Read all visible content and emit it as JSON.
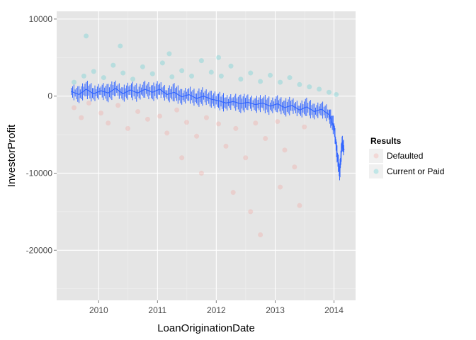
{
  "chart_data": {
    "type": "scatter",
    "xlabel": "LoanOriginationDate",
    "ylabel": "InvestorProfit",
    "xlim": [
      "2009-04-15",
      "2014-05-15"
    ],
    "ylim": [
      -26500,
      11000
    ],
    "x_ticks": [
      "2010",
      "2011",
      "2012",
      "2013",
      "2014"
    ],
    "x_tick_dates": [
      "2010-01-01",
      "2011-01-01",
      "2012-01-01",
      "2013-01-01",
      "2014-01-01"
    ],
    "y_ticks": [
      10000,
      0,
      -10000,
      -20000
    ],
    "y_tick_labels": [
      "10000",
      "0",
      "-10000",
      "-20000"
    ],
    "grid": true,
    "legend_position": "right",
    "legend": {
      "title": "Results",
      "entries": [
        {
          "label": "Defaulted",
          "color": "#F8766D"
        },
        {
          "label": "Current or Paid",
          "color": "#00BFC4"
        }
      ]
    },
    "series": [
      {
        "name": "Defaulted",
        "color": "#F8766D",
        "kind": "points",
        "points": [
          {
            "x": "2009-08-01",
            "y": -1500
          },
          {
            "x": "2009-09-15",
            "y": -2800
          },
          {
            "x": "2009-11-01",
            "y": -900
          },
          {
            "x": "2010-01-15",
            "y": -2200
          },
          {
            "x": "2010-03-01",
            "y": -3500
          },
          {
            "x": "2010-05-01",
            "y": -1200
          },
          {
            "x": "2010-07-01",
            "y": -4200
          },
          {
            "x": "2010-09-01",
            "y": -2000
          },
          {
            "x": "2010-11-01",
            "y": -3000
          },
          {
            "x": "2011-01-15",
            "y": -2600
          },
          {
            "x": "2011-03-01",
            "y": -4800
          },
          {
            "x": "2011-05-01",
            "y": -1800
          },
          {
            "x": "2011-07-01",
            "y": -3400
          },
          {
            "x": "2011-09-01",
            "y": -5200
          },
          {
            "x": "2011-11-01",
            "y": -2800
          },
          {
            "x": "2012-01-15",
            "y": -3600
          },
          {
            "x": "2012-03-01",
            "y": -6500
          },
          {
            "x": "2012-05-01",
            "y": -4200
          },
          {
            "x": "2012-07-01",
            "y": -8000
          },
          {
            "x": "2012-09-01",
            "y": -3500
          },
          {
            "x": "2012-11-01",
            "y": -5500
          },
          {
            "x": "2013-01-15",
            "y": -3300
          },
          {
            "x": "2013-03-01",
            "y": -7000
          },
          {
            "x": "2013-05-01",
            "y": -9200
          },
          {
            "x": "2013-07-01",
            "y": -4000
          },
          {
            "x": "2012-04-15",
            "y": -12500
          },
          {
            "x": "2012-08-01",
            "y": -15000
          },
          {
            "x": "2013-02-01",
            "y": -11800
          },
          {
            "x": "2013-06-01",
            "y": -14200
          },
          {
            "x": "2011-10-01",
            "y": -10000
          },
          {
            "x": "2012-10-01",
            "y": -18000
          },
          {
            "x": "2011-06-01",
            "y": -8000
          }
        ]
      },
      {
        "name": "Current or Paid",
        "color": "#00BFC4",
        "kind": "points",
        "points": [
          {
            "x": "2009-08-01",
            "y": 1800
          },
          {
            "x": "2009-10-01",
            "y": 2600
          },
          {
            "x": "2009-12-01",
            "y": 3200
          },
          {
            "x": "2010-02-01",
            "y": 2400
          },
          {
            "x": "2010-04-01",
            "y": 4000
          },
          {
            "x": "2010-06-01",
            "y": 3000
          },
          {
            "x": "2010-08-01",
            "y": 2200
          },
          {
            "x": "2010-10-01",
            "y": 3800
          },
          {
            "x": "2010-12-01",
            "y": 2900
          },
          {
            "x": "2011-02-01",
            "y": 4300
          },
          {
            "x": "2011-04-01",
            "y": 2500
          },
          {
            "x": "2011-06-01",
            "y": 3300
          },
          {
            "x": "2011-08-01",
            "y": 2600
          },
          {
            "x": "2011-10-01",
            "y": 4600
          },
          {
            "x": "2011-12-01",
            "y": 3100
          },
          {
            "x": "2012-02-01",
            "y": 2600
          },
          {
            "x": "2012-04-01",
            "y": 3900
          },
          {
            "x": "2012-06-01",
            "y": 2200
          },
          {
            "x": "2012-08-01",
            "y": 3000
          },
          {
            "x": "2012-10-01",
            "y": 1900
          },
          {
            "x": "2012-12-01",
            "y": 2700
          },
          {
            "x": "2013-02-01",
            "y": 1800
          },
          {
            "x": "2013-04-01",
            "y": 2400
          },
          {
            "x": "2013-06-01",
            "y": 1500
          },
          {
            "x": "2013-08-01",
            "y": 1200
          },
          {
            "x": "2013-10-01",
            "y": 900
          },
          {
            "x": "2013-12-01",
            "y": 500
          },
          {
            "x": "2014-01-15",
            "y": 200
          },
          {
            "x": "2010-05-15",
            "y": 6500
          },
          {
            "x": "2011-03-15",
            "y": 5500
          },
          {
            "x": "2012-01-15",
            "y": 5000
          },
          {
            "x": "2009-10-15",
            "y": 7800
          }
        ]
      },
      {
        "name": "",
        "color": "#3366FF",
        "kind": "line",
        "points": [
          {
            "x": "2009-07-15",
            "y": 600
          },
          {
            "x": "2009-09-01",
            "y": 200
          },
          {
            "x": "2009-10-15",
            "y": 900
          },
          {
            "x": "2009-12-01",
            "y": 300
          },
          {
            "x": "2010-01-15",
            "y": 700
          },
          {
            "x": "2010-03-01",
            "y": 400
          },
          {
            "x": "2010-04-15",
            "y": 1000
          },
          {
            "x": "2010-06-01",
            "y": 300
          },
          {
            "x": "2010-07-15",
            "y": 800
          },
          {
            "x": "2010-09-01",
            "y": 400
          },
          {
            "x": "2010-10-15",
            "y": 900
          },
          {
            "x": "2010-12-01",
            "y": 500
          },
          {
            "x": "2011-01-15",
            "y": 900
          },
          {
            "x": "2011-03-01",
            "y": 200
          },
          {
            "x": "2011-04-15",
            "y": 500
          },
          {
            "x": "2011-06-01",
            "y": -100
          },
          {
            "x": "2011-07-15",
            "y": 200
          },
          {
            "x": "2011-09-01",
            "y": -300
          },
          {
            "x": "2011-10-15",
            "y": 0
          },
          {
            "x": "2011-12-01",
            "y": -400
          },
          {
            "x": "2012-01-15",
            "y": -600
          },
          {
            "x": "2012-03-01",
            "y": -900
          },
          {
            "x": "2012-04-15",
            "y": -700
          },
          {
            "x": "2012-06-01",
            "y": -1000
          },
          {
            "x": "2012-07-15",
            "y": -800
          },
          {
            "x": "2012-09-01",
            "y": -1100
          },
          {
            "x": "2012-10-15",
            "y": -900
          },
          {
            "x": "2012-12-01",
            "y": -1300
          },
          {
            "x": "2013-01-15",
            "y": -1000
          },
          {
            "x": "2013-03-01",
            "y": -1500
          },
          {
            "x": "2013-04-15",
            "y": -1200
          },
          {
            "x": "2013-06-01",
            "y": -1800
          },
          {
            "x": "2013-07-15",
            "y": -1400
          },
          {
            "x": "2013-09-01",
            "y": -2000
          },
          {
            "x": "2013-10-15",
            "y": -1700
          },
          {
            "x": "2013-12-01",
            "y": -2400
          },
          {
            "x": "2014-01-01",
            "y": -4000
          },
          {
            "x": "2014-01-20",
            "y": -7500
          },
          {
            "x": "2014-02-05",
            "y": -10000
          },
          {
            "x": "2014-02-20",
            "y": -6000
          },
          {
            "x": "2014-03-05",
            "y": -7000
          }
        ]
      }
    ]
  }
}
